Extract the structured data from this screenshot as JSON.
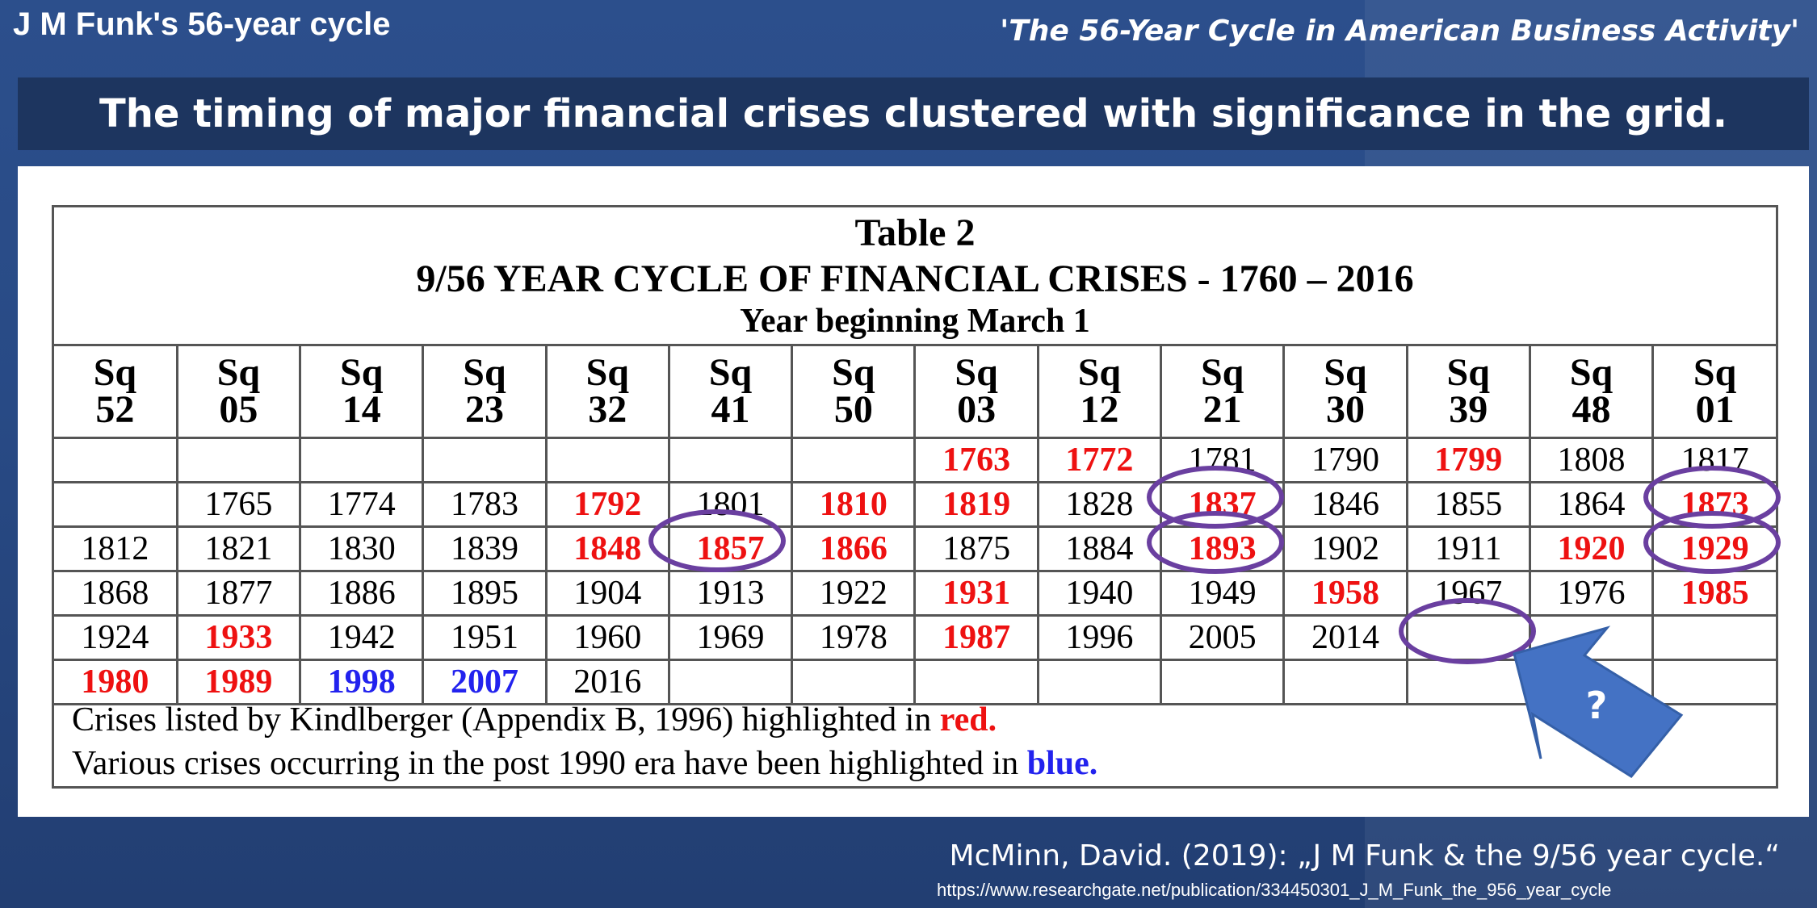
{
  "header": {
    "left_title": "J M Funk's 56-year cycle",
    "right_title": "'The 56-Year Cycle in American Business Activity'"
  },
  "banner": "The timing of major financial crises clustered with significance in the grid.",
  "table": {
    "title": "Table 2",
    "subtitle": "9/56 YEAR CYCLE OF FINANCIAL CRISES - 1760 – 2016",
    "year_note": "Year beginning March 1",
    "columns": [
      {
        "sq": "Sq",
        "num": "52"
      },
      {
        "sq": "Sq",
        "num": "05"
      },
      {
        "sq": "Sq",
        "num": "14"
      },
      {
        "sq": "Sq",
        "num": "23"
      },
      {
        "sq": "Sq",
        "num": "32"
      },
      {
        "sq": "Sq",
        "num": "41"
      },
      {
        "sq": "Sq",
        "num": "50"
      },
      {
        "sq": "Sq",
        "num": "03"
      },
      {
        "sq": "Sq",
        "num": "12"
      },
      {
        "sq": "Sq",
        "num": "21"
      },
      {
        "sq": "Sq",
        "num": "30"
      },
      {
        "sq": "Sq",
        "num": "39"
      },
      {
        "sq": "Sq",
        "num": "48"
      },
      {
        "sq": "Sq",
        "num": "01"
      }
    ],
    "rows": [
      [
        {
          "v": ""
        },
        {
          "v": ""
        },
        {
          "v": ""
        },
        {
          "v": ""
        },
        {
          "v": ""
        },
        {
          "v": ""
        },
        {
          "v": ""
        },
        {
          "v": "1763",
          "c": "red"
        },
        {
          "v": "1772",
          "c": "red"
        },
        {
          "v": "1781"
        },
        {
          "v": "1790"
        },
        {
          "v": "1799",
          "c": "red"
        },
        {
          "v": "1808"
        },
        {
          "v": "1817"
        }
      ],
      [
        {
          "v": ""
        },
        {
          "v": "1765"
        },
        {
          "v": "1774"
        },
        {
          "v": "1783"
        },
        {
          "v": "1792",
          "c": "red"
        },
        {
          "v": "1801"
        },
        {
          "v": "1810",
          "c": "red"
        },
        {
          "v": "1819",
          "c": "red"
        },
        {
          "v": "1828"
        },
        {
          "v": "1837",
          "c": "red"
        },
        {
          "v": "1846"
        },
        {
          "v": "1855"
        },
        {
          "v": "1864"
        },
        {
          "v": "1873",
          "c": "red"
        }
      ],
      [
        {
          "v": "1812"
        },
        {
          "v": "1821"
        },
        {
          "v": "1830"
        },
        {
          "v": "1839"
        },
        {
          "v": "1848",
          "c": "red"
        },
        {
          "v": "1857",
          "c": "red"
        },
        {
          "v": "1866",
          "c": "red"
        },
        {
          "v": "1875"
        },
        {
          "v": "1884"
        },
        {
          "v": "1893",
          "c": "red"
        },
        {
          "v": "1902"
        },
        {
          "v": "1911"
        },
        {
          "v": "1920",
          "c": "red"
        },
        {
          "v": "1929",
          "c": "red"
        }
      ],
      [
        {
          "v": "1868"
        },
        {
          "v": "1877"
        },
        {
          "v": "1886"
        },
        {
          "v": "1895"
        },
        {
          "v": "1904"
        },
        {
          "v": "1913"
        },
        {
          "v": "1922"
        },
        {
          "v": "1931",
          "c": "red"
        },
        {
          "v": "1940"
        },
        {
          "v": "1949"
        },
        {
          "v": "1958",
          "c": "red"
        },
        {
          "v": "1967"
        },
        {
          "v": "1976"
        },
        {
          "v": "1985",
          "c": "red"
        }
      ],
      [
        {
          "v": "1924"
        },
        {
          "v": "1933",
          "c": "red"
        },
        {
          "v": "1942"
        },
        {
          "v": "1951"
        },
        {
          "v": "1960"
        },
        {
          "v": "1969"
        },
        {
          "v": "1978"
        },
        {
          "v": "1987",
          "c": "red"
        },
        {
          "v": "1996"
        },
        {
          "v": "2005"
        },
        {
          "v": "2014"
        },
        {
          "v": ""
        },
        {
          "v": ""
        },
        {
          "v": ""
        }
      ],
      [
        {
          "v": "1980",
          "c": "red"
        },
        {
          "v": "1989",
          "c": "red"
        },
        {
          "v": "1998",
          "c": "blue"
        },
        {
          "v": "2007",
          "c": "blue"
        },
        {
          "v": "2016"
        },
        {
          "v": ""
        },
        {
          "v": ""
        },
        {
          "v": ""
        },
        {
          "v": ""
        },
        {
          "v": ""
        },
        {
          "v": ""
        },
        {
          "v": ""
        },
        {
          "v": ""
        },
        {
          "v": ""
        }
      ]
    ],
    "footnote": {
      "line1_text": "Crises listed by Kindlberger (Appendix B, 1996) highlighted in ",
      "line1_color_word": "red.",
      "line2_text": "Various crises occurring in the post 1990 era have been highlighted in ",
      "line2_color_word": "blue."
    }
  },
  "annotations": {
    "arrow_label": "?",
    "circle_color": "#6a3fa0",
    "arrow_color": "#4472c4",
    "highlight_red": "#ee1111",
    "highlight_blue": "#2222ee"
  },
  "citation": {
    "text": "McMinn, David. (2019): „J M Funk & the 9/56 year cycle.“",
    "url": "https://www.researchgate.net/publication/334450301_J_M_Funk_the_956_year_cycle"
  }
}
